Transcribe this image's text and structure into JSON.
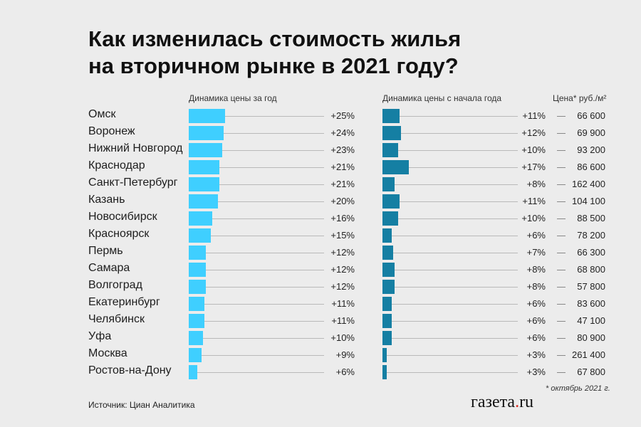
{
  "title_line1": "Как изменилась стоимость жилья",
  "title_line2": "на вторичном рынке в 2021 году?",
  "col1_header": "Динамика цены за год",
  "col2_header": "Динамика цены с начала года",
  "price_header": "Цена* руб./м²",
  "footnote": "* октябрь 2021 г.",
  "source": "Источник: Циан Аналитика",
  "logo_text": "газета",
  "logo_dot": ".",
  "logo_domain": "ru",
  "colors": {
    "annual_bar": "#3fcfff",
    "ytd_bar": "#157fa3",
    "background": "#ececec"
  },
  "chart_data": {
    "type": "bar",
    "categories": [
      "Омск",
      "Воронеж",
      "Нижний Новгород",
      "Краснодар",
      "Санкт-Петербург",
      "Казань",
      "Новосибирск",
      "Красноярск",
      "Пермь",
      "Самара",
      "Волгоград",
      "Екатеринбург",
      "Челябинск",
      "Уфа",
      "Москва",
      "Ростов-на-Дону"
    ],
    "series": [
      {
        "name": "Динамика цены за год",
        "values": [
          25,
          24,
          23,
          21,
          21,
          20,
          16,
          15,
          12,
          12,
          12,
          11,
          11,
          10,
          9,
          6
        ],
        "labels": [
          "+25%",
          "+24%",
          "+23%",
          "+21%",
          "+21%",
          "+20%",
          "+16%",
          "+15%",
          "+12%",
          "+12%",
          "+12%",
          "+11%",
          "+11%",
          "+10%",
          "+9%",
          "+6%"
        ]
      },
      {
        "name": "Динамика цены с начала года",
        "values": [
          11,
          12,
          10,
          17,
          8,
          11,
          10,
          6,
          7,
          8,
          8,
          6,
          6,
          6,
          3,
          3
        ],
        "labels": [
          "+11%",
          "+12%",
          "+10%",
          "+17%",
          "+8%",
          "+11%",
          "+10%",
          "+6%",
          "+7%",
          "+8%",
          "+8%",
          "+6%",
          "+6%",
          "+6%",
          "+3%",
          "+3%"
        ]
      }
    ],
    "prices": [
      "66 600",
      "69 900",
      "93 200",
      "86 600",
      "162 400",
      "104 100",
      "88 500",
      "78 200",
      "66 300",
      "68 800",
      "57 800",
      "83 600",
      "47 100",
      "80 900",
      "261 400",
      "67 800"
    ]
  }
}
